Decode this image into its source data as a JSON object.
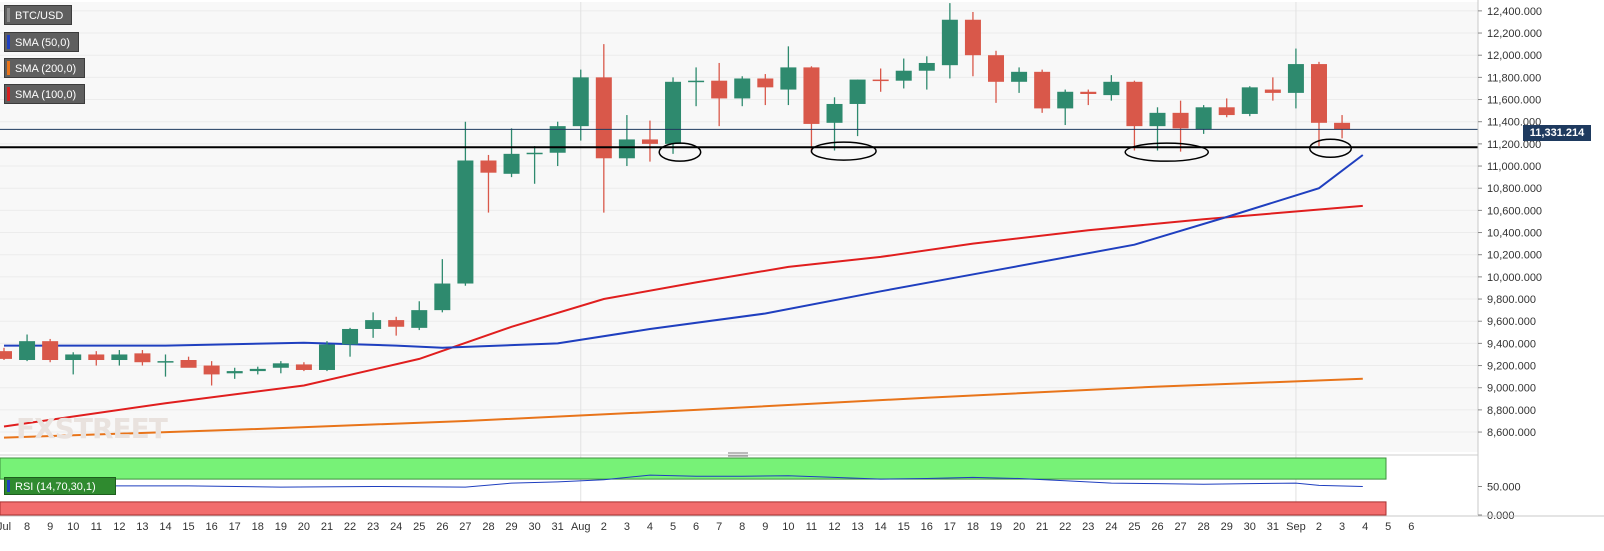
{
  "legend": [
    {
      "label": "BTC/USD",
      "color": "#5f5f5f"
    },
    {
      "label": "SMA (50,0)",
      "color": "#1f3fbf"
    },
    {
      "label": "SMA (200,0)",
      "color": "#e8741a"
    },
    {
      "label": "SMA (100,0)",
      "color": "#d62020"
    }
  ],
  "watermark": "FXSTREET",
  "current_price": "11,331.214",
  "rsi_label": "RSI (14,70,30,1)",
  "colors": {
    "up": "#2e8a6e",
    "down": "#d9584a",
    "sma50": "#1f3fbf",
    "sma100": "#e01e1e",
    "sma200": "#e8741a",
    "rsi_overbought": "#77f277",
    "rsi_oversold": "#f26d6d",
    "rsi_line": "#1f3fbf"
  },
  "chart_data": [
    {
      "type": "candlestick",
      "title": "BTC/USD",
      "x_tick_labels": [
        "Jul",
        "8",
        "9",
        "10",
        "11",
        "12",
        "13",
        "14",
        "15",
        "16",
        "17",
        "18",
        "19",
        "20",
        "21",
        "22",
        "23",
        "24",
        "25",
        "26",
        "27",
        "28",
        "29",
        "30",
        "31",
        "Aug",
        "2",
        "3",
        "4",
        "5",
        "6",
        "7",
        "8",
        "9",
        "10",
        "11",
        "12",
        "13",
        "14",
        "15",
        "16",
        "17",
        "18",
        "19",
        "20",
        "21",
        "22",
        "23",
        "24",
        "25",
        "26",
        "27",
        "28",
        "29",
        "30",
        "31",
        "Sep",
        "2",
        "3",
        "4",
        "5",
        "6"
      ],
      "y_ticks": [
        "8,600.000",
        "8,800.000",
        "9,000.000",
        "9,200.000",
        "9,400.000",
        "9,600.000",
        "9,800.000",
        "10,000.000",
        "10,200.000",
        "10,400.000",
        "10,600.000",
        "10,800.000",
        "11,000.000",
        "11,200.000",
        "11,400.000",
        "11,600.000",
        "11,800.000",
        "12,000.000",
        "12,200.000",
        "12,400.000"
      ],
      "ylim": [
        8420,
        12480
      ],
      "support_level": 11170,
      "last_price": 11331.214,
      "candles": [
        {
          "o": 9330,
          "h": 9360,
          "l": 9250,
          "c": 9260
        },
        {
          "o": 9250,
          "h": 9480,
          "l": 9240,
          "c": 9420
        },
        {
          "o": 9420,
          "h": 9440,
          "l": 9230,
          "c": 9250
        },
        {
          "o": 9250,
          "h": 9320,
          "l": 9120,
          "c": 9300
        },
        {
          "o": 9300,
          "h": 9330,
          "l": 9200,
          "c": 9250
        },
        {
          "o": 9250,
          "h": 9340,
          "l": 9200,
          "c": 9300
        },
        {
          "o": 9310,
          "h": 9340,
          "l": 9200,
          "c": 9230
        },
        {
          "o": 9240,
          "h": 9300,
          "l": 9100,
          "c": 9240
        },
        {
          "o": 9250,
          "h": 9280,
          "l": 9190,
          "c": 9180
        },
        {
          "o": 9200,
          "h": 9240,
          "l": 9020,
          "c": 9120
        },
        {
          "o": 9130,
          "h": 9180,
          "l": 9080,
          "c": 9150
        },
        {
          "o": 9150,
          "h": 9190,
          "l": 9120,
          "c": 9170
        },
        {
          "o": 9180,
          "h": 9240,
          "l": 9130,
          "c": 9220
        },
        {
          "o": 9210,
          "h": 9230,
          "l": 9150,
          "c": 9160
        },
        {
          "o": 9160,
          "h": 9420,
          "l": 9150,
          "c": 9390
        },
        {
          "o": 9390,
          "h": 9540,
          "l": 9280,
          "c": 9530
        },
        {
          "o": 9530,
          "h": 9680,
          "l": 9450,
          "c": 9610
        },
        {
          "o": 9610,
          "h": 9640,
          "l": 9470,
          "c": 9550
        },
        {
          "o": 9540,
          "h": 9780,
          "l": 9520,
          "c": 9700
        },
        {
          "o": 9700,
          "h": 10160,
          "l": 9680,
          "c": 9940
        },
        {
          "o": 9940,
          "h": 11400,
          "l": 9920,
          "c": 11050
        },
        {
          "o": 11050,
          "h": 11100,
          "l": 10580,
          "c": 10940
        },
        {
          "o": 10930,
          "h": 11340,
          "l": 10900,
          "c": 11110
        },
        {
          "o": 11110,
          "h": 11180,
          "l": 10840,
          "c": 11120
        },
        {
          "o": 11120,
          "h": 11400,
          "l": 11000,
          "c": 11360
        },
        {
          "o": 11360,
          "h": 11870,
          "l": 11230,
          "c": 11800
        },
        {
          "o": 11800,
          "h": 12100,
          "l": 10580,
          "c": 11070
        },
        {
          "o": 11070,
          "h": 11460,
          "l": 11000,
          "c": 11240
        },
        {
          "o": 11240,
          "h": 11410,
          "l": 11040,
          "c": 11200
        },
        {
          "o": 11200,
          "h": 11800,
          "l": 11110,
          "c": 11760
        },
        {
          "o": 11760,
          "h": 11890,
          "l": 11540,
          "c": 11770
        },
        {
          "o": 11770,
          "h": 11930,
          "l": 11360,
          "c": 11610
        },
        {
          "o": 11610,
          "h": 11810,
          "l": 11540,
          "c": 11790
        },
        {
          "o": 11790,
          "h": 11830,
          "l": 11550,
          "c": 11710
        },
        {
          "o": 11690,
          "h": 12080,
          "l": 11550,
          "c": 11890
        },
        {
          "o": 11890,
          "h": 11900,
          "l": 11120,
          "c": 11380
        },
        {
          "o": 11390,
          "h": 11620,
          "l": 11140,
          "c": 11560
        },
        {
          "o": 11560,
          "h": 11780,
          "l": 11270,
          "c": 11780
        },
        {
          "o": 11780,
          "h": 11880,
          "l": 11670,
          "c": 11770
        },
        {
          "o": 11770,
          "h": 11970,
          "l": 11700,
          "c": 11860
        },
        {
          "o": 11860,
          "h": 11990,
          "l": 11690,
          "c": 11930
        },
        {
          "o": 11910,
          "h": 12470,
          "l": 11790,
          "c": 12320
        },
        {
          "o": 12320,
          "h": 12390,
          "l": 11810,
          "c": 12000
        },
        {
          "o": 12000,
          "h": 12040,
          "l": 11570,
          "c": 11760
        },
        {
          "o": 11760,
          "h": 11890,
          "l": 11660,
          "c": 11850
        },
        {
          "o": 11850,
          "h": 11870,
          "l": 11480,
          "c": 11520
        },
        {
          "o": 11520,
          "h": 11690,
          "l": 11370,
          "c": 11670
        },
        {
          "o": 11670,
          "h": 11690,
          "l": 11550,
          "c": 11650
        },
        {
          "o": 11640,
          "h": 11820,
          "l": 11590,
          "c": 11760
        },
        {
          "o": 11760,
          "h": 11770,
          "l": 11140,
          "c": 11360
        },
        {
          "o": 11360,
          "h": 11530,
          "l": 11140,
          "c": 11480
        },
        {
          "o": 11480,
          "h": 11590,
          "l": 11130,
          "c": 11340
        },
        {
          "o": 11330,
          "h": 11550,
          "l": 11290,
          "c": 11530
        },
        {
          "o": 11530,
          "h": 11610,
          "l": 11440,
          "c": 11460
        },
        {
          "o": 11470,
          "h": 11720,
          "l": 11450,
          "c": 11710
        },
        {
          "o": 11690,
          "h": 11800,
          "l": 11590,
          "c": 11660
        },
        {
          "o": 11660,
          "h": 12060,
          "l": 11520,
          "c": 11920
        },
        {
          "o": 11920,
          "h": 11940,
          "l": 11180,
          "c": 11390
        },
        {
          "o": 11390,
          "h": 11460,
          "l": 11250,
          "c": 11330
        }
      ],
      "sma50_x": [
        0,
        7,
        13,
        17,
        19,
        24,
        28,
        33,
        38,
        43,
        49,
        53,
        57,
        58.9
      ],
      "sma50": [
        9380,
        9380,
        9405,
        9380,
        9360,
        9400,
        9530,
        9670,
        9870,
        10060,
        10290,
        10540,
        10800,
        11100
      ],
      "sma100_x": [
        0,
        7,
        13,
        18,
        22,
        26,
        30,
        34,
        38,
        42,
        47,
        52,
        58.9
      ],
      "sma100": [
        8650,
        8860,
        9020,
        9260,
        9550,
        9800,
        9950,
        10090,
        10180,
        10300,
        10420,
        10520,
        10640
      ],
      "sma200_x": [
        0,
        10,
        20,
        30,
        40,
        50,
        58.9
      ],
      "sma200": [
        8550,
        8620,
        8700,
        8800,
        8910,
        9010,
        9080
      ],
      "circle_marks": [
        {
          "center_day": 29.3,
          "half_width_days": 0.9,
          "y": 11125
        },
        {
          "center_day": 36.4,
          "half_width_days": 1.4,
          "y": 11135
        },
        {
          "center_day": 50.4,
          "half_width_days": 1.8,
          "y": 11125
        },
        {
          "center_day": 57.5,
          "half_width_days": 0.9,
          "y": 11160
        }
      ]
    },
    {
      "type": "line",
      "title": "RSI (14,70,30,1)",
      "y_ticks": [
        "0.000",
        "50.000"
      ],
      "ylim": [
        0,
        100
      ],
      "bands": {
        "overbought": 70,
        "oversold": 30
      },
      "x": [
        0,
        4,
        8,
        12,
        16,
        20,
        22,
        24,
        26,
        28,
        30,
        32,
        34,
        36,
        38,
        40,
        42,
        44,
        46,
        48,
        50,
        52,
        54,
        56,
        57,
        58.9
      ],
      "values": [
        55,
        51,
        51,
        49,
        50,
        49,
        56,
        58,
        62,
        70,
        68,
        68,
        69,
        66,
        63,
        64,
        66,
        64,
        60,
        56,
        55,
        54,
        55,
        56,
        52,
        50
      ]
    }
  ]
}
